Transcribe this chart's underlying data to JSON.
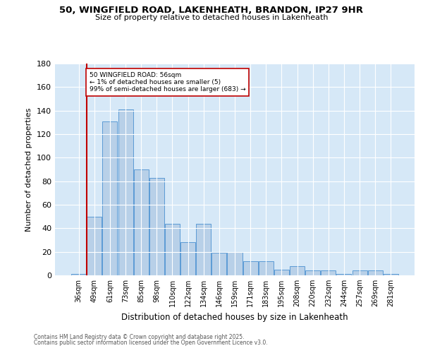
{
  "title_line1": "50, WINGFIELD ROAD, LAKENHEATH, BRANDON, IP27 9HR",
  "title_line2": "Size of property relative to detached houses in Lakenheath",
  "xlabel": "Distribution of detached houses by size in Lakenheath",
  "ylabel": "Number of detached properties",
  "categories": [
    "36sqm",
    "49sqm",
    "61sqm",
    "73sqm",
    "85sqm",
    "98sqm",
    "110sqm",
    "122sqm",
    "134sqm",
    "146sqm",
    "159sqm",
    "171sqm",
    "183sqm",
    "195sqm",
    "208sqm",
    "220sqm",
    "232sqm",
    "244sqm",
    "257sqm",
    "269sqm",
    "281sqm"
  ],
  "values": [
    1,
    50,
    131,
    141,
    90,
    83,
    44,
    28,
    44,
    19,
    20,
    12,
    12,
    5,
    8,
    4,
    4,
    1,
    4,
    4,
    1
  ],
  "bar_color": "#b8d0e8",
  "bar_edge_color": "#5b9bd5",
  "highlight_index": 1,
  "highlight_color": "#c00000",
  "background_color": "#d6e8f7",
  "annotation_text": "50 WINGFIELD ROAD: 56sqm\n← 1% of detached houses are smaller (5)\n99% of semi-detached houses are larger (683) →",
  "ylim": [
    0,
    180
  ],
  "yticks": [
    0,
    20,
    40,
    60,
    80,
    100,
    120,
    140,
    160,
    180
  ],
  "footer_line1": "Contains HM Land Registry data © Crown copyright and database right 2025.",
  "footer_line2": "Contains public sector information licensed under the Open Government Licence v3.0."
}
